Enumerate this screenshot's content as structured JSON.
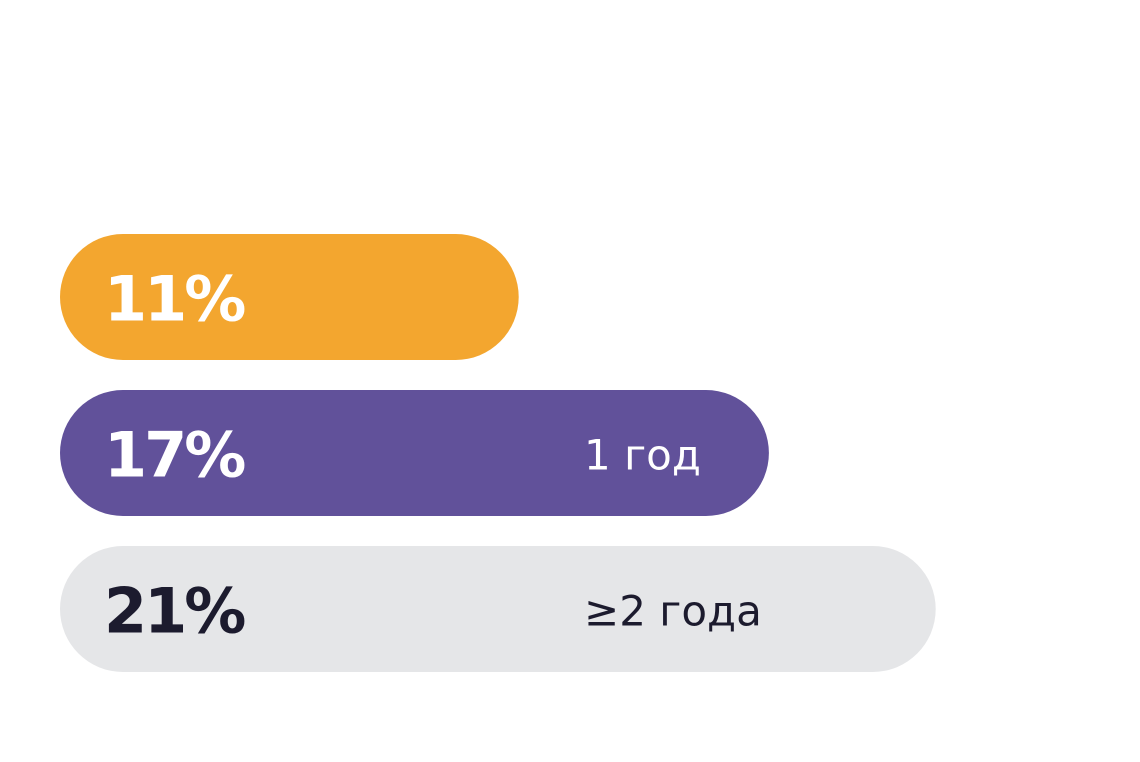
{
  "chart_data": {
    "type": "bar",
    "orientation": "horizontal",
    "categories": [
      null,
      "1 год",
      "≥2 года"
    ],
    "values": [
      11,
      17,
      21
    ],
    "value_labels": [
      "11%",
      "17%",
      "21%"
    ],
    "colors": [
      "#f3a62f",
      "#61519a",
      "#e5e6e8"
    ]
  }
}
